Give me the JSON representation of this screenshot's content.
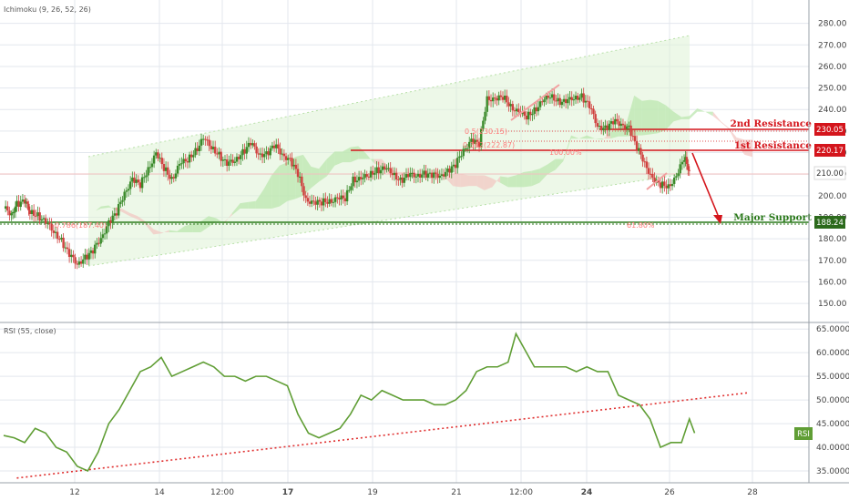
{
  "colors": {
    "background": "#ffffff",
    "bull": "#3a8a2a",
    "bear": "#d0413f",
    "resistance": "#d4151c",
    "support": "#2c7a1c",
    "rsi": "#609e35",
    "grid": "#e3e7ee",
    "cloud_bull": "#b8e6ab",
    "cloud_bear": "#f2c4c0",
    "channel": "#dff2d6",
    "axis_text": "#444444",
    "fib_text": "#ff7a7a",
    "trend_dotted": "#e03030"
  },
  "top_panel": {
    "indicator_label": "Ichimoku (9, 26, 52, 26)"
  },
  "rsi_panel": {
    "indicator_label": "RSI (55, close)",
    "badge": "RSI"
  },
  "price_axis_ticks": [
    "280.00",
    "270.00",
    "260.00",
    "250.00",
    "240.00",
    "230.00",
    "220.00",
    "210.00",
    "200.00",
    "190.00",
    "180.00",
    "170.00",
    "160.00",
    "150.00"
  ],
  "rsi_axis_ticks": [
    "65.0000",
    "60.0000",
    "55.0000",
    "50.0000",
    "45.0000",
    "40.0000",
    "35.0000"
  ],
  "time_axis_ticks": [
    "12",
    "14",
    "12:00",
    "17",
    "19",
    "21",
    "12:00",
    "24",
    "26",
    "28"
  ],
  "levels": {
    "second_resistance": {
      "label": "2nd Resistance",
      "value": "230.05"
    },
    "first_resistance": {
      "label": "1st Resistance",
      "value": "220.17"
    },
    "pivot": {
      "value": "210.00"
    },
    "major_support": {
      "label": "Major Support",
      "value": "188.24"
    }
  },
  "fib_labels": {
    "f1": "0.382(222.87)",
    "f2": "0.5(230.15)",
    "f3": "100.00%",
    "f4": "61.80%",
    "f5": "0.786(187.40)"
  },
  "chart_data": [
    {
      "type": "candlestick",
      "title": "",
      "indicator": "Ichimoku (9, 26, 52, 26)",
      "ylim": [
        142,
        290
      ],
      "x_ticks": [
        "12",
        "14",
        "12:00",
        "17",
        "19",
        "21",
        "12:00",
        "24",
        "26",
        "28"
      ],
      "y_ticks": [
        280,
        270,
        260,
        250,
        240,
        230,
        220,
        210,
        200,
        190,
        180,
        170,
        160,
        150
      ],
      "close_path": [
        [
          0.0,
          194
        ],
        [
          0.3,
          192
        ],
        [
          0.5,
          196
        ],
        [
          0.8,
          197
        ],
        [
          1.0,
          193
        ],
        [
          1.3,
          191
        ],
        [
          1.6,
          187
        ],
        [
          1.9,
          184
        ],
        [
          2.2,
          179
        ],
        [
          2.5,
          172
        ],
        [
          2.8,
          169
        ],
        [
          3.1,
          171
        ],
        [
          3.4,
          174
        ],
        [
          3.7,
          181
        ],
        [
          4.0,
          187
        ],
        [
          4.3,
          192
        ],
        [
          4.6,
          202
        ],
        [
          4.9,
          207
        ],
        [
          5.2,
          205
        ],
        [
          5.5,
          213
        ],
        [
          5.8,
          219
        ],
        [
          6.1,
          213
        ],
        [
          6.4,
          208
        ],
        [
          6.7,
          214
        ],
        [
          7.0,
          217
        ],
        [
          7.3,
          221
        ],
        [
          7.6,
          226
        ],
        [
          7.9,
          223
        ],
        [
          8.2,
          219
        ],
        [
          8.5,
          214
        ],
        [
          8.8,
          217
        ],
        [
          9.1,
          220
        ],
        [
          9.4,
          224
        ],
        [
          9.7,
          220
        ],
        [
          10.0,
          219
        ],
        [
          10.3,
          223
        ],
        [
          10.6,
          220
        ],
        [
          10.9,
          216
        ],
        [
          11.2,
          210
        ],
        [
          11.5,
          199
        ],
        [
          11.8,
          196
        ],
        [
          12.1,
          197
        ],
        [
          12.4,
          198
        ],
        [
          12.7,
          198
        ],
        [
          13.0,
          199
        ],
        [
          13.3,
          208
        ],
        [
          13.6,
          207
        ],
        [
          13.9,
          210
        ],
        [
          14.2,
          212
        ],
        [
          14.5,
          212
        ],
        [
          14.8,
          211
        ],
        [
          15.1,
          207
        ],
        [
          15.4,
          209
        ],
        [
          15.7,
          210
        ],
        [
          16.0,
          210
        ],
        [
          16.3,
          209
        ],
        [
          16.6,
          210
        ],
        [
          16.9,
          211
        ],
        [
          17.2,
          214
        ],
        [
          17.5,
          222
        ],
        [
          17.8,
          225
        ],
        [
          18.1,
          224
        ],
        [
          18.4,
          246
        ],
        [
          18.7,
          244
        ],
        [
          19.0,
          246
        ],
        [
          19.3,
          242
        ],
        [
          19.6,
          238
        ],
        [
          19.9,
          237
        ],
        [
          20.2,
          240
        ],
        [
          20.5,
          243
        ],
        [
          20.8,
          247
        ],
        [
          21.1,
          244
        ],
        [
          21.4,
          243
        ],
        [
          21.7,
          246
        ],
        [
          22.0,
          246
        ],
        [
          22.3,
          241
        ],
        [
          22.6,
          233
        ],
        [
          22.9,
          231
        ],
        [
          23.2,
          234
        ],
        [
          23.5,
          234
        ],
        [
          23.8,
          231
        ],
        [
          24.1,
          222
        ],
        [
          24.4,
          216
        ],
        [
          24.7,
          207
        ],
        [
          25.0,
          205
        ],
        [
          25.3,
          205
        ],
        [
          25.6,
          208
        ],
        [
          25.9,
          218
        ],
        [
          26.1,
          212
        ]
      ],
      "levels": {
        "second_resistance": 230.05,
        "first_resistance": 220.17,
        "pivot": 210.0,
        "major_support": 188.24
      },
      "fibonacci": {
        "0.382": 222.87,
        "0.5": 230.15,
        "0.786": 187.4
      },
      "annotations": [
        "2nd Resistance",
        "1st Resistance",
        "Major Support",
        "100.00%",
        "61.80%"
      ]
    },
    {
      "type": "line",
      "title": "",
      "indicator": "RSI (55, close)",
      "ylim": [
        32.5,
        66
      ],
      "y_ticks": [
        65,
        60,
        55,
        50,
        45,
        40,
        35
      ],
      "series": [
        {
          "name": "RSI",
          "points": [
            [
              0.0,
              42.5
            ],
            [
              0.4,
              42
            ],
            [
              0.8,
              41
            ],
            [
              1.2,
              44
            ],
            [
              1.6,
              43
            ],
            [
              2.0,
              40
            ],
            [
              2.4,
              39
            ],
            [
              2.8,
              36
            ],
            [
              3.2,
              35
            ],
            [
              3.6,
              39
            ],
            [
              4.0,
              45
            ],
            [
              4.4,
              48
            ],
            [
              4.8,
              52
            ],
            [
              5.2,
              56
            ],
            [
              5.6,
              57
            ],
            [
              6.0,
              59
            ],
            [
              6.4,
              55
            ],
            [
              6.8,
              56
            ],
            [
              7.2,
              57
            ],
            [
              7.6,
              58
            ],
            [
              8.0,
              57
            ],
            [
              8.4,
              55
            ],
            [
              8.8,
              55
            ],
            [
              9.2,
              54
            ],
            [
              9.6,
              55
            ],
            [
              10.0,
              55
            ],
            [
              10.4,
              54
            ],
            [
              10.8,
              53
            ],
            [
              11.2,
              47
            ],
            [
              11.6,
              43
            ],
            [
              12.0,
              42
            ],
            [
              12.4,
              43
            ],
            [
              12.8,
              44
            ],
            [
              13.2,
              47
            ],
            [
              13.6,
              51
            ],
            [
              14.0,
              50
            ],
            [
              14.4,
              52
            ],
            [
              14.8,
              51
            ],
            [
              15.2,
              50
            ],
            [
              15.6,
              50
            ],
            [
              16.0,
              50
            ],
            [
              16.4,
              49
            ],
            [
              16.8,
              49
            ],
            [
              17.2,
              50
            ],
            [
              17.6,
              52
            ],
            [
              18.0,
              56
            ],
            [
              18.4,
              57
            ],
            [
              18.8,
              57
            ],
            [
              19.2,
              58
            ],
            [
              19.5,
              64
            ],
            [
              19.9,
              60
            ],
            [
              20.2,
              57
            ],
            [
              20.6,
              57
            ],
            [
              21.0,
              57
            ],
            [
              21.4,
              57
            ],
            [
              21.8,
              56
            ],
            [
              22.2,
              57
            ],
            [
              22.6,
              56
            ],
            [
              23.0,
              56
            ],
            [
              23.4,
              51
            ],
            [
              23.8,
              50
            ],
            [
              24.2,
              49
            ],
            [
              24.6,
              46
            ],
            [
              25.0,
              40
            ],
            [
              25.4,
              41
            ],
            [
              25.8,
              41
            ],
            [
              26.1,
              46
            ],
            [
              26.3,
              43
            ]
          ]
        }
      ],
      "trendline": {
        "from": [
          0.5,
          33.5
        ],
        "to": [
          28.3,
          51.5
        ]
      }
    }
  ]
}
